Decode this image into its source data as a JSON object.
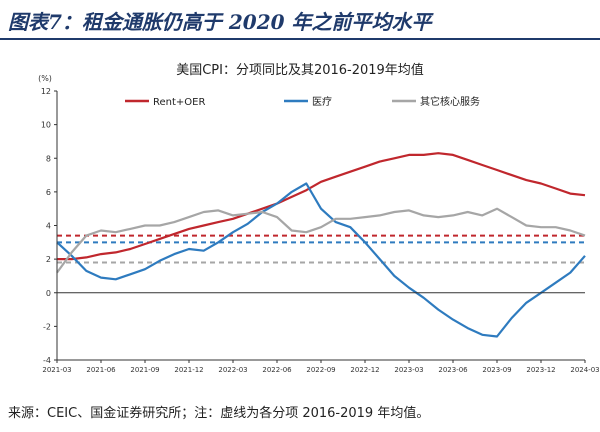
{
  "figure": {
    "title": "图表7：租金通胀仍高于 2020 年之前平均水平",
    "source": "来源：CEIC、国金证券研究所；注：虚线为各分项 2016-2019 年均值。"
  },
  "chart_data": {
    "type": "line",
    "title": "美国CPI：分项同比及其2016-2019年均值",
    "ylabel": "(%)",
    "ylim": [
      -4,
      12
    ],
    "yticks": [
      -4,
      -2,
      0,
      2,
      4,
      6,
      8,
      10,
      12
    ],
    "xlim": [
      "2021-03",
      "2024-03"
    ],
    "xticks": [
      "2021-03",
      "2021-06",
      "2021-09",
      "2021-12",
      "2022-03",
      "2022-06",
      "2022-09",
      "2022-12",
      "2023-03",
      "2023-06",
      "2023-09",
      "2023-12",
      "2024-03"
    ],
    "grid": false,
    "legend": "top",
    "series": [
      {
        "name": "Rent+OER",
        "color": "#c0272d",
        "x": [
          "2021-03",
          "2021-04",
          "2021-05",
          "2021-06",
          "2021-07",
          "2021-08",
          "2021-09",
          "2021-10",
          "2021-11",
          "2021-12",
          "2022-01",
          "2022-02",
          "2022-03",
          "2022-04",
          "2022-05",
          "2022-06",
          "2022-07",
          "2022-08",
          "2022-09",
          "2022-10",
          "2022-11",
          "2022-12",
          "2023-01",
          "2023-02",
          "2023-03",
          "2023-04",
          "2023-05",
          "2023-06",
          "2023-07",
          "2023-08",
          "2023-09",
          "2023-10",
          "2023-11",
          "2023-12",
          "2024-01",
          "2024-02",
          "2024-03"
        ],
        "values": [
          2.0,
          2.0,
          2.1,
          2.3,
          2.4,
          2.6,
          2.9,
          3.2,
          3.5,
          3.8,
          4.0,
          4.2,
          4.4,
          4.7,
          5.0,
          5.3,
          5.7,
          6.1,
          6.6,
          6.9,
          7.2,
          7.5,
          7.8,
          8.0,
          8.2,
          8.2,
          8.3,
          8.2,
          7.9,
          7.6,
          7.3,
          7.0,
          6.7,
          6.5,
          6.2,
          5.9,
          5.8
        ]
      },
      {
        "name": "医疗",
        "color": "#2e7bbf",
        "x": [
          "2021-03",
          "2021-04",
          "2021-05",
          "2021-06",
          "2021-07",
          "2021-08",
          "2021-09",
          "2021-10",
          "2021-11",
          "2021-12",
          "2022-01",
          "2022-02",
          "2022-03",
          "2022-04",
          "2022-05",
          "2022-06",
          "2022-07",
          "2022-08",
          "2022-09",
          "2022-10",
          "2022-11",
          "2022-12",
          "2023-01",
          "2023-02",
          "2023-03",
          "2023-04",
          "2023-05",
          "2023-06",
          "2023-07",
          "2023-08",
          "2023-09",
          "2023-10",
          "2023-11",
          "2023-12",
          "2024-01",
          "2024-02",
          "2024-03"
        ],
        "values": [
          3.0,
          2.2,
          1.3,
          0.9,
          0.8,
          1.1,
          1.4,
          1.9,
          2.3,
          2.6,
          2.5,
          3.0,
          3.6,
          4.1,
          4.8,
          5.3,
          6.0,
          6.5,
          5.0,
          4.2,
          3.9,
          3.0,
          2.0,
          1.0,
          0.3,
          -0.3,
          -1.0,
          -1.6,
          -2.1,
          -2.5,
          -2.6,
          -1.5,
          -0.6,
          0.0,
          0.6,
          1.2,
          2.2
        ]
      },
      {
        "name": "其它核心服务",
        "color": "#a6a6a6",
        "x": [
          "2021-03",
          "2021-04",
          "2021-05",
          "2021-06",
          "2021-07",
          "2021-08",
          "2021-09",
          "2021-10",
          "2021-11",
          "2021-12",
          "2022-01",
          "2022-02",
          "2022-03",
          "2022-04",
          "2022-05",
          "2022-06",
          "2022-07",
          "2022-08",
          "2022-09",
          "2022-10",
          "2022-11",
          "2022-12",
          "2023-01",
          "2023-02",
          "2023-03",
          "2023-04",
          "2023-05",
          "2023-06",
          "2023-07",
          "2023-08",
          "2023-09",
          "2023-10",
          "2023-11",
          "2023-12",
          "2024-01",
          "2024-02",
          "2024-03"
        ],
        "values": [
          1.2,
          2.4,
          3.4,
          3.7,
          3.6,
          3.8,
          4.0,
          4.0,
          4.2,
          4.5,
          4.8,
          4.9,
          4.6,
          4.7,
          4.8,
          4.5,
          3.7,
          3.6,
          3.9,
          4.4,
          4.4,
          4.5,
          4.6,
          4.8,
          4.9,
          4.6,
          4.5,
          4.6,
          4.8,
          4.6,
          5.0,
          4.5,
          4.0,
          3.9,
          3.9,
          3.7,
          3.4
        ]
      }
    ],
    "reference_lines": [
      {
        "series": "Rent+OER",
        "value": 3.4,
        "color": "#c0272d",
        "style": "dashed"
      },
      {
        "series": "医疗",
        "value": 3.0,
        "color": "#2e7bbf",
        "style": "dashed"
      },
      {
        "series": "其它核心服务",
        "value": 1.8,
        "color": "#a6a6a6",
        "style": "dashed"
      }
    ]
  }
}
